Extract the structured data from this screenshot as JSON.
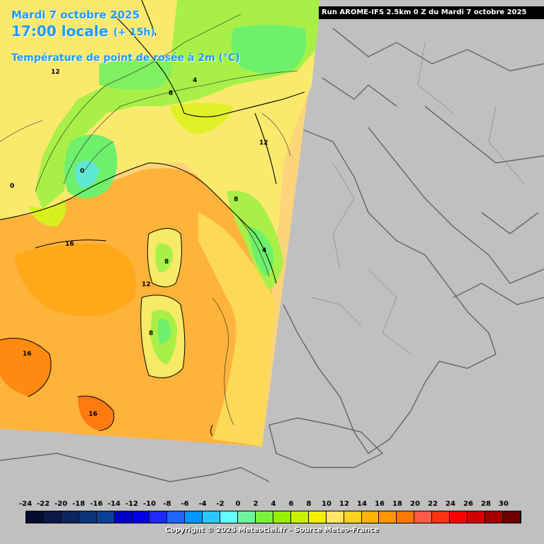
{
  "title": {
    "date": "Mardi 7 octobre 2025",
    "time": "17:00 locale",
    "lead": "(+ 15h)",
    "variable": "Température de point de rosée à 2m (°C)"
  },
  "run_banner": "Run AROME-IFS 2.5km 0 Z du Mardi 7 octobre 2025",
  "contour_labels": [
    "12",
    "8",
    "4",
    "0",
    "0",
    "12",
    "8",
    "4",
    "16",
    "8",
    "12",
    "8",
    "16",
    "16"
  ],
  "legend": {
    "ticks": [
      "-24",
      "-22",
      "-20",
      "-18",
      "-16",
      "-14",
      "-12",
      "-10",
      "-8",
      "-6",
      "-4",
      "-2",
      "0",
      "2",
      "4",
      "6",
      "8",
      "10",
      "12",
      "14",
      "16",
      "18",
      "20",
      "22",
      "24",
      "26",
      "28",
      "30"
    ],
    "colors": [
      "#060c2c",
      "#0b1747",
      "#0c2460",
      "#0b3378",
      "#0a3f95",
      "#0000c8",
      "#0000e8",
      "#1e28ff",
      "#1e64ff",
      "#0096ff",
      "#28c8ff",
      "#64ffff",
      "#6cf59a",
      "#7cf03c",
      "#96f000",
      "#c8f000",
      "#f0f000",
      "#ffe664",
      "#ffd21e",
      "#ffb400",
      "#ff9600",
      "#ff7800",
      "#ff5a46",
      "#ff3214",
      "#ff0000",
      "#d20000",
      "#a00000",
      "#6e0000"
    ]
  },
  "copyright": "Copyright © 2025 Meteociel.fr - Source Meteo-France"
}
